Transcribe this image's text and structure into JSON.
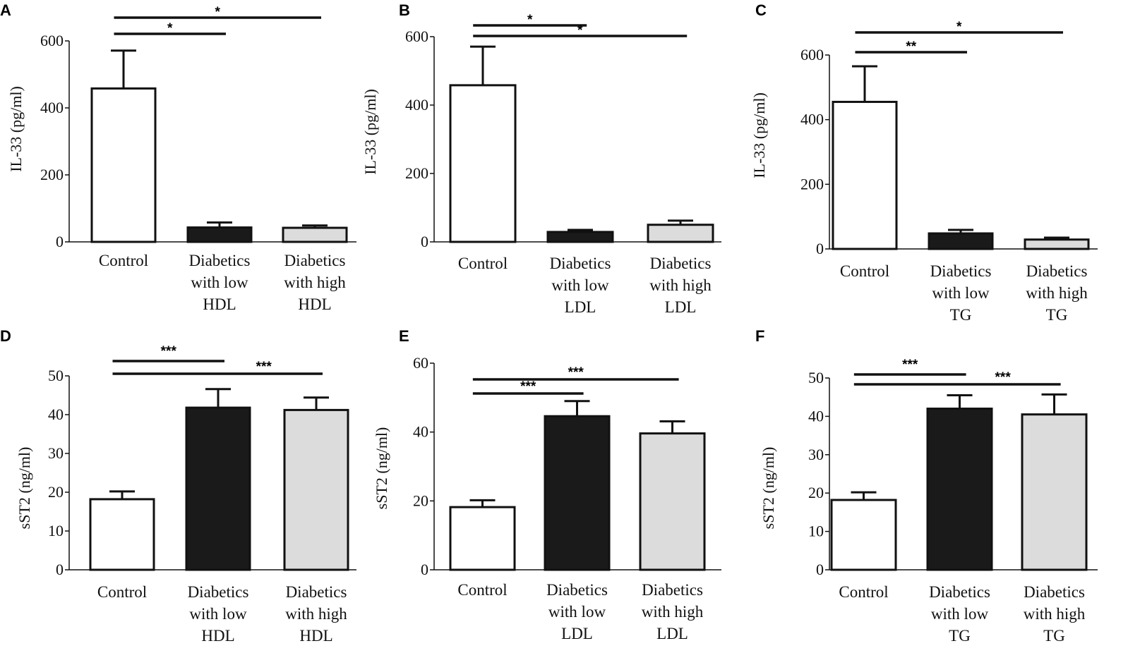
{
  "colors": {
    "control": "#ffffff",
    "low": "#1a1a1a",
    "high": "#dcdcdc",
    "stroke": "#111111"
  },
  "chart_data": [
    {
      "panel": "A",
      "type": "bar",
      "ylabel": "IL-33 (pg/ml)",
      "ylim": [
        0,
        600
      ],
      "yticks": [
        0,
        200,
        400,
        600
      ],
      "categories": [
        [
          "Control"
        ],
        [
          "Diabetics",
          "with low",
          "HDL"
        ],
        [
          "Diabetics",
          "with high",
          "HDL"
        ]
      ],
      "values": [
        458,
        43,
        42
      ],
      "errors": [
        113,
        15,
        7
      ],
      "significance": [
        {
          "from": 0,
          "to": 1,
          "label": "*"
        },
        {
          "from": 0,
          "to": 2,
          "label": "*"
        }
      ]
    },
    {
      "panel": "B",
      "type": "bar",
      "ylabel": "IL-33 (pg/ml)",
      "ylim": [
        0,
        600
      ],
      "yticks": [
        0,
        200,
        400,
        600
      ],
      "categories": [
        [
          "Control"
        ],
        [
          "Diabetics",
          "with low",
          "LDL"
        ],
        [
          "Diabetics",
          "with high",
          "LDL"
        ]
      ],
      "values": [
        458,
        29,
        50
      ],
      "errors": [
        113,
        6,
        12
      ],
      "significance": [
        {
          "from": 0,
          "to": 1,
          "label": "*"
        },
        {
          "from": 0,
          "to": 2,
          "label": "*"
        }
      ]
    },
    {
      "panel": "C",
      "type": "bar",
      "ylabel": "IL-33 (pg/ml)",
      "ylim": [
        0,
        600
      ],
      "yticks": [
        0,
        200,
        400,
        600
      ],
      "categories": [
        [
          "Control"
        ],
        [
          "Diabetics",
          "with low",
          "TG"
        ],
        [
          "Diabetics",
          "with high",
          "TG"
        ]
      ],
      "values": [
        455,
        48,
        29
      ],
      "errors": [
        110,
        11,
        6
      ],
      "significance": [
        {
          "from": 0,
          "to": 1,
          "label": "**"
        },
        {
          "from": 0,
          "to": 2,
          "label": "*"
        }
      ]
    },
    {
      "panel": "D",
      "type": "bar",
      "ylabel": "sST2 (ng/ml)",
      "ylim": [
        0,
        50
      ],
      "yticks": [
        0,
        10,
        20,
        30,
        40,
        50
      ],
      "categories": [
        [
          "Control"
        ],
        [
          "Diabetics",
          "with low",
          "HDL"
        ],
        [
          "Diabetics",
          "with high",
          "HDL"
        ]
      ],
      "values": [
        18.2,
        41.8,
        41.2
      ],
      "errors": [
        2.0,
        4.8,
        3.2
      ],
      "significance": [
        {
          "from": 0,
          "to": 1,
          "label": "***"
        },
        {
          "from": 0,
          "to": 2,
          "label": "***"
        }
      ]
    },
    {
      "panel": "E",
      "type": "bar",
      "ylabel": "sST2 (ng/ml)",
      "ylim": [
        0,
        60
      ],
      "yticks": [
        0,
        20,
        40,
        60
      ],
      "categories": [
        [
          "Control"
        ],
        [
          "Diabetics",
          "with low",
          "LDL"
        ],
        [
          "Diabetics",
          "with high",
          "LDL"
        ]
      ],
      "values": [
        18.2,
        44.6,
        39.6
      ],
      "errors": [
        2.0,
        4.4,
        3.5
      ],
      "significance": [
        {
          "from": 0,
          "to": 1,
          "label": "***"
        },
        {
          "from": 0,
          "to": 2,
          "label": "***"
        }
      ]
    },
    {
      "panel": "F",
      "type": "bar",
      "ylabel": "sST2 (ng/ml)",
      "ylim": [
        0,
        50
      ],
      "yticks": [
        0,
        10,
        20,
        30,
        40,
        50
      ],
      "categories": [
        [
          "Control"
        ],
        [
          "Diabetics",
          "with low",
          "TG"
        ],
        [
          "Diabetics",
          "with high",
          "TG"
        ]
      ],
      "values": [
        18.2,
        42.0,
        40.5
      ],
      "errors": [
        2.0,
        3.5,
        5.2
      ],
      "significance": [
        {
          "from": 0,
          "to": 1,
          "label": "***"
        },
        {
          "from": 0,
          "to": 2,
          "label": "***"
        }
      ]
    }
  ]
}
